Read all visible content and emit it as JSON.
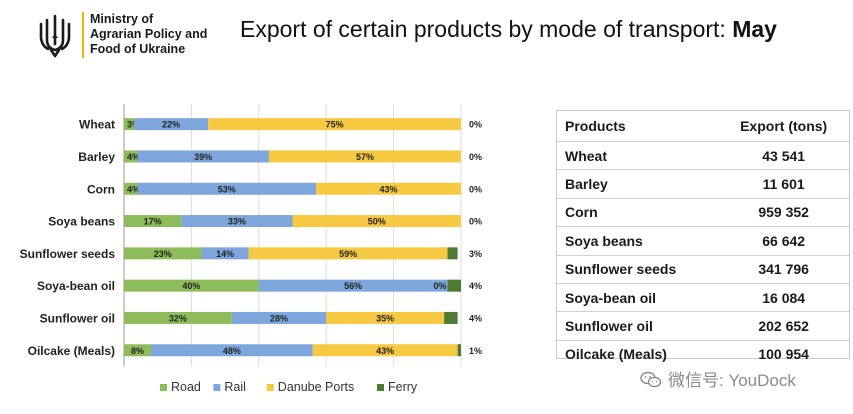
{
  "header": {
    "ministry_lines": [
      "Ministry of",
      "Agrarian Policy and",
      "Food of Ukraine"
    ],
    "title_main": "Export of certain products by mode of transport: ",
    "title_bold": "May"
  },
  "chart_data": {
    "type": "bar",
    "orientation": "horizontal",
    "stacked": true,
    "categories": [
      "Wheat",
      "Barley",
      "Corn",
      "Soya beans",
      "Sunflower seeds",
      "Soya-bean oil",
      "Sunflower oil",
      "Oilcake (Meals)"
    ],
    "series": [
      {
        "name": "Road",
        "color": "#8fbc5a",
        "values": [
          3,
          4,
          4,
          17,
          23,
          40,
          32,
          8
        ]
      },
      {
        "name": "Rail",
        "color": "#7ea6dc",
        "values": [
          22,
          39,
          53,
          33,
          14,
          56,
          28,
          48
        ]
      },
      {
        "name": "Danube Ports",
        "color": "#f7c842",
        "values": [
          75,
          57,
          43,
          50,
          59,
          0,
          35,
          43
        ]
      },
      {
        "name": "Ferry",
        "color": "#4f7a34",
        "values": [
          0,
          0,
          0,
          0,
          3,
          4,
          4,
          1
        ]
      }
    ],
    "xlim": [
      0,
      100
    ],
    "grid": true,
    "legend_position": "bottom"
  },
  "table": {
    "headers": [
      "Products",
      "Export (tons)"
    ],
    "rows": [
      [
        "Wheat",
        "43 541"
      ],
      [
        "Barley",
        "11 601"
      ],
      [
        "Corn",
        "959 352"
      ],
      [
        "Soya beans",
        "66 642"
      ],
      [
        "Sunflower seeds",
        "341 796"
      ],
      [
        "Soya-bean oil",
        "16 084"
      ],
      [
        "Sunflower oil",
        "202 652"
      ],
      [
        "Oilcake (Meals)",
        "100 954"
      ]
    ]
  },
  "watermark": {
    "text": "微信号: YouDock",
    "icon": "wechat-icon"
  },
  "colors": {
    "accent": "#e8b500",
    "logo": "#1a1a1a"
  }
}
